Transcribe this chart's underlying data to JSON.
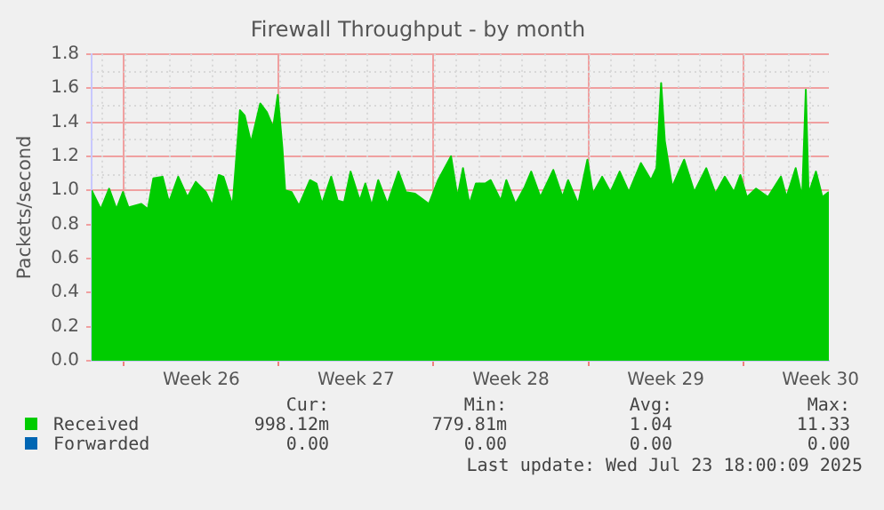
{
  "chart_data": {
    "type": "area",
    "title": "Firewall Throughput - by month",
    "ylabel": "Packets/second",
    "xlim": [
      "2025-06-20T13:00",
      "2025-07-23T21:00"
    ],
    "xticks": [
      {
        "value": "2025-06-22",
        "label": null
      },
      {
        "value": "2025-06-25T12:00",
        "label": "Week 26"
      },
      {
        "value": "2025-06-29",
        "label": null
      },
      {
        "value": "2025-07-02T12:00",
        "label": "Week 27"
      },
      {
        "value": "2025-07-06",
        "label": null
      },
      {
        "value": "2025-07-09T12:00",
        "label": "Week 28"
      },
      {
        "value": "2025-07-13",
        "label": null
      },
      {
        "value": "2025-07-16T12:00",
        "label": "Week 29"
      },
      {
        "value": "2025-07-20",
        "label": null
      },
      {
        "value": "2025-07-23T12:00",
        "label": "Week 30"
      }
    ],
    "ylim": [
      0,
      1.8
    ],
    "yticks": [
      {
        "value": 0,
        "label": "0.0"
      },
      {
        "value": 0.2,
        "label": "0.2"
      },
      {
        "value": 0.4,
        "label": "0.4"
      },
      {
        "value": 0.6,
        "label": "0.6"
      },
      {
        "value": 0.8,
        "label": "0.8"
      },
      {
        "value": 1,
        "label": "1.0"
      },
      {
        "value": 1.2,
        "label": "1.2"
      },
      {
        "value": 1.4,
        "label": "1.4"
      },
      {
        "value": 1.6,
        "label": "1.6"
      },
      {
        "value": 1.8,
        "label": "1.8"
      }
    ],
    "grid": true,
    "legend": "bottom left",
    "marker": "none",
    "series": [
      {
        "name": "Received",
        "color": "#00cc00",
        "x": [
          "2025-06-20T13:00",
          "2025-06-20T23:00",
          "2025-06-21T08:00",
          "2025-06-21T16:00",
          "2025-06-21T23:00",
          "2025-06-22T05:00",
          "2025-06-22T19:00",
          "2025-06-23T02:00",
          "2025-06-23T08:00",
          "2025-06-23T18:00",
          "2025-06-24T01:00",
          "2025-06-24T11:00",
          "2025-06-24T21:00",
          "2025-06-25T06:00",
          "2025-06-25T17:00",
          "2025-06-26T00:00",
          "2025-06-26T07:00",
          "2025-06-26T12:00",
          "2025-06-26T22:00",
          "2025-06-27T06:00",
          "2025-06-27T11:00",
          "2025-06-27T18:00",
          "2025-06-28T04:00",
          "2025-06-28T11:00",
          "2025-06-28T18:00",
          "2025-06-28T23:00",
          "2025-06-29T04:00",
          "2025-06-29T07:00",
          "2025-06-29T14:00",
          "2025-06-29T22:00",
          "2025-06-30T10:00",
          "2025-06-30T17:00",
          "2025-06-30T23:00",
          "2025-07-01T09:00",
          "2025-07-01T16:00",
          "2025-07-01T23:00",
          "2025-07-02T06:00",
          "2025-07-02T16:00",
          "2025-07-02T22:00",
          "2025-07-03T05:00",
          "2025-07-03T12:00",
          "2025-07-03T22:00",
          "2025-07-04T10:00",
          "2025-07-04T18:00",
          "2025-07-05T04:00",
          "2025-07-05T09:00",
          "2025-07-05T19:00",
          "2025-07-06T05:00",
          "2025-07-06T19:00",
          "2025-07-07T02:00",
          "2025-07-07T08:00",
          "2025-07-07T15:00",
          "2025-07-07T22:00",
          "2025-07-08T08:00",
          "2025-07-08T14:00",
          "2025-07-09T01:00",
          "2025-07-09T07:00",
          "2025-07-09T17:00",
          "2025-07-10T03:00",
          "2025-07-10T10:00",
          "2025-07-10T20:00",
          "2025-07-11T10:00",
          "2025-07-11T20:00",
          "2025-07-12T02:00",
          "2025-07-12T13:00",
          "2025-07-12T23:00",
          "2025-07-13T05:00",
          "2025-07-13T15:00",
          "2025-07-14T00:00",
          "2025-07-14T10:00",
          "2025-07-14T20:00",
          "2025-07-15T09:00",
          "2025-07-15T20:00",
          "2025-07-16T02:00",
          "2025-07-16T07:00",
          "2025-07-16T11:00",
          "2025-07-16T19:00",
          "2025-07-17T08:00",
          "2025-07-17T19:00",
          "2025-07-18T08:00",
          "2025-07-18T18:00",
          "2025-07-19T04:00",
          "2025-07-19T14:00",
          "2025-07-19T21:00",
          "2025-07-20T04:00",
          "2025-07-20T14:00",
          "2025-07-21T03:00",
          "2025-07-21T17:00",
          "2025-07-21T23:00",
          "2025-07-22T09:00",
          "2025-07-22T16:00",
          "2025-07-22T20:00",
          "2025-07-22T23:00",
          "2025-07-23T07:00",
          "2025-07-23T14:00",
          "2025-07-23T21:00"
        ],
        "values": [
          1.0,
          0.89,
          1.01,
          0.89,
          0.99,
          0.9,
          0.92,
          0.89,
          1.07,
          1.08,
          0.93,
          1.08,
          0.96,
          1.05,
          0.99,
          0.91,
          1.09,
          1.08,
          0.91,
          1.47,
          1.44,
          1.28,
          1.51,
          1.46,
          1.37,
          1.56,
          1.25,
          1.0,
          0.99,
          0.91,
          1.06,
          1.04,
          0.92,
          1.08,
          0.94,
          0.93,
          1.11,
          0.94,
          1.04,
          0.91,
          1.06,
          0.92,
          1.11,
          0.99,
          0.98,
          0.96,
          0.92,
          1.06,
          1.2,
          0.96,
          1.13,
          0.92,
          1.04,
          1.04,
          1.06,
          0.94,
          1.06,
          0.92,
          1.02,
          1.11,
          0.96,
          1.12,
          0.96,
          1.06,
          0.92,
          1.18,
          0.98,
          1.08,
          0.99,
          1.11,
          0.99,
          1.16,
          1.06,
          1.13,
          1.63,
          1.29,
          1.02,
          1.18,
          0.99,
          1.13,
          0.98,
          1.08,
          0.99,
          1.09,
          0.96,
          1.01,
          0.96,
          1.08,
          0.96,
          1.13,
          0.96,
          1.59,
          0.98,
          1.11,
          0.96,
          0.99
        ]
      },
      {
        "name": "Forwarded",
        "color": "#0066b3"
      }
    ],
    "annotations": [
      "Cur:",
      "Min:",
      "Avg:",
      "Max:",
      "998.12m",
      "779.81m",
      "1.04",
      "11.33",
      "0.00",
      "0.00",
      "0.00",
      "0.00",
      "Last update: Wed Jul 23 18:00:09 2025"
    ]
  }
}
